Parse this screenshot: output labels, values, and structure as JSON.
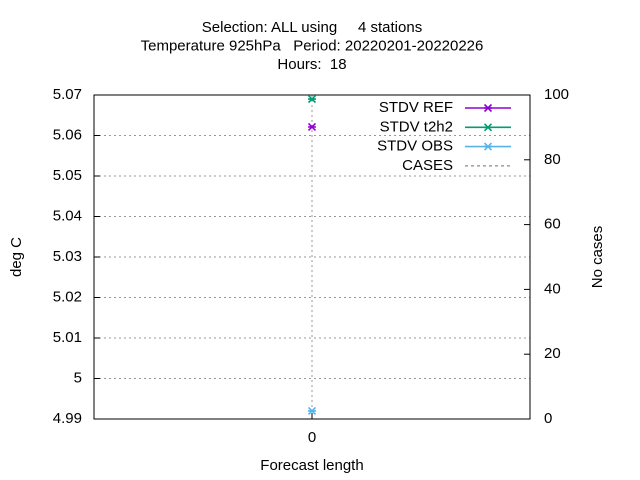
{
  "chart_data": {
    "type": "scatter",
    "title": [
      "Selection: ALL using     4 stations",
      "Temperature 925hPa   Period: 20220201-20220226",
      "Hours:  18"
    ],
    "x_label": "Forecast length",
    "y_label": "deg C",
    "y2_label": "No cases",
    "x": [
      0
    ],
    "xlim": [
      -1,
      1
    ],
    "xticks": [
      0
    ],
    "ylim": [
      4.99,
      5.07
    ],
    "yticks": [
      4.99,
      5,
      5.01,
      5.02,
      5.03,
      5.04,
      5.05,
      5.06,
      5.07
    ],
    "y2lim": [
      0,
      100
    ],
    "y2ticks": [
      0,
      20,
      40,
      60,
      80,
      100
    ],
    "grid": true,
    "legend": "top-right",
    "series": [
      {
        "name": "STDV REF",
        "color": "#9400d3",
        "values": [
          5.0621
        ]
      },
      {
        "name": "STDV t2h2",
        "color": "#009e73",
        "values": [
          5.069
        ]
      },
      {
        "name": "STDV OBS",
        "color": "#56b4e9",
        "values": [
          4.992
        ]
      },
      {
        "name": "CASES",
        "color": "#888888",
        "values": [
          null
        ],
        "axis": "y2",
        "dashed": true
      }
    ]
  }
}
